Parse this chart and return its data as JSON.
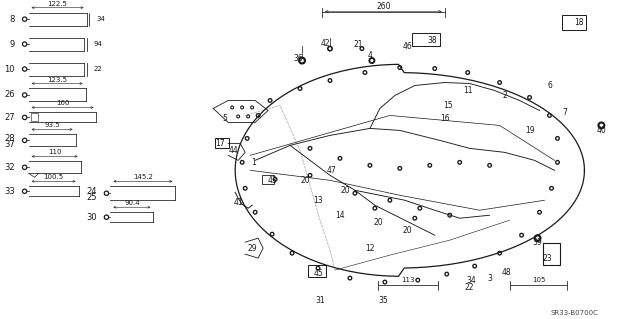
{
  "bg_color": "#ffffff",
  "diagram_code": "SR33-B0700C",
  "fig_width": 6.4,
  "fig_height": 3.19,
  "dpi": 100,
  "color": "#1a1a1a"
}
